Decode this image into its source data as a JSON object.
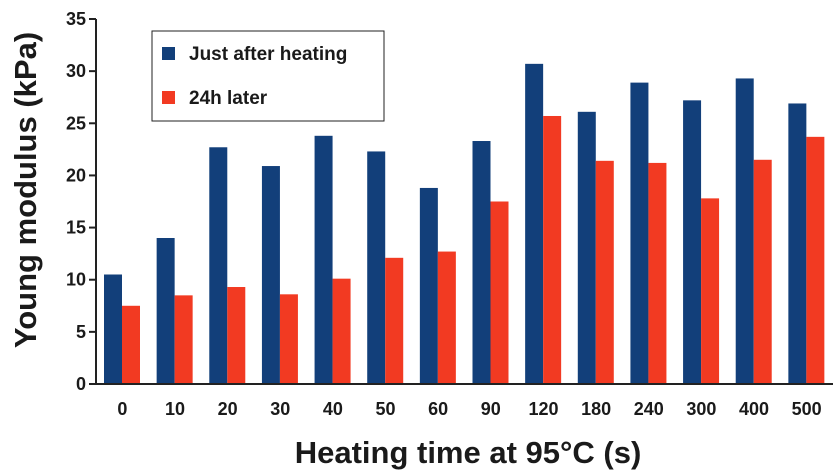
{
  "chart_data": {
    "type": "bar",
    "xlabel": "Heating time at 95°C (s)",
    "ylabel": "Young modulus (kPa)",
    "ylim": [
      0,
      35
    ],
    "yticks": [
      0,
      5,
      10,
      15,
      20,
      25,
      30,
      35
    ],
    "categories": [
      "0",
      "10",
      "20",
      "30",
      "40",
      "50",
      "60",
      "90",
      "120",
      "180",
      "240",
      "300",
      "400",
      "500"
    ],
    "series": [
      {
        "name": "Just after heating",
        "color": "#123f7a",
        "values": [
          10.5,
          14.0,
          22.7,
          20.9,
          23.8,
          22.3,
          18.8,
          23.3,
          30.7,
          26.1,
          28.9,
          27.2,
          29.3,
          26.9
        ]
      },
      {
        "name": "24h later",
        "color": "#f23a22",
        "values": [
          7.5,
          8.5,
          9.3,
          8.6,
          10.1,
          12.1,
          12.7,
          17.5,
          25.7,
          21.4,
          21.2,
          17.8,
          21.5,
          23.7
        ]
      }
    ],
    "legend": "top-left",
    "grid": false
  }
}
